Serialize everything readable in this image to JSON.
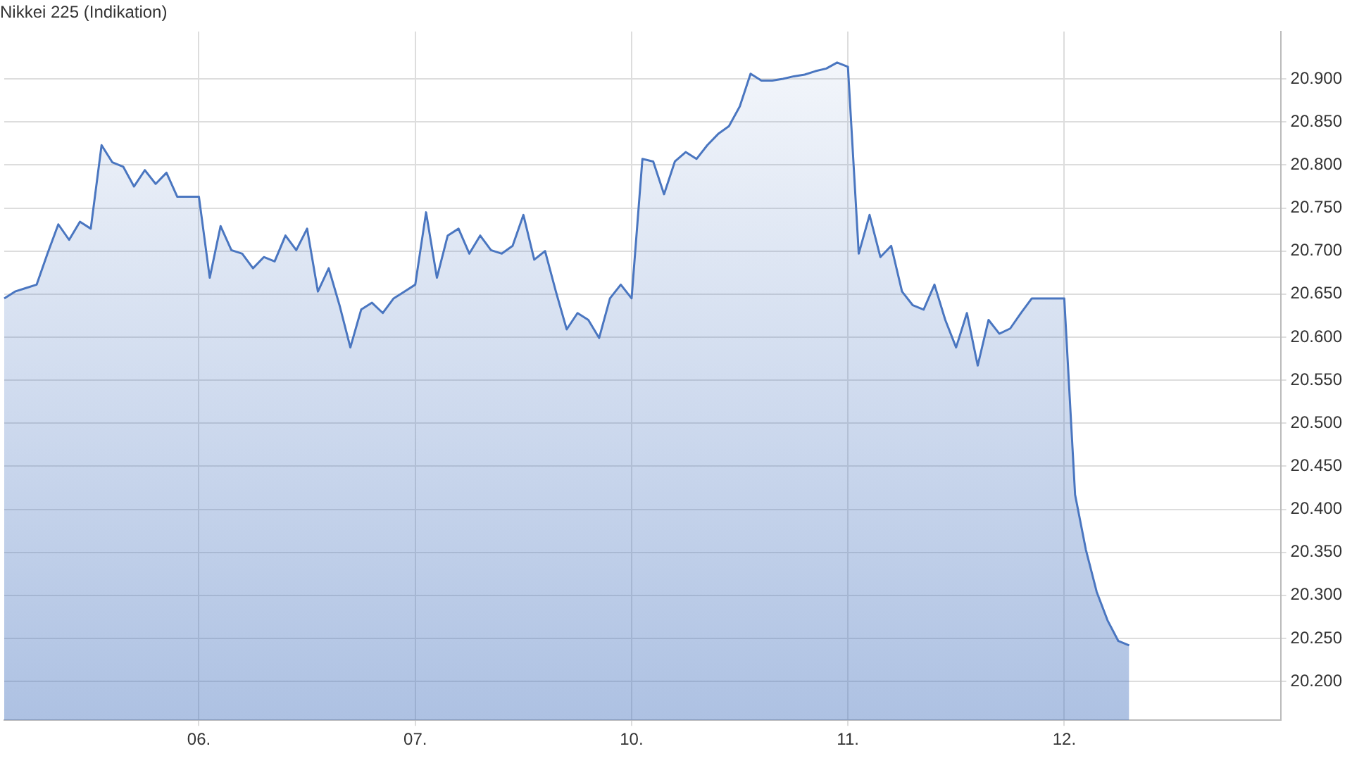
{
  "chart_data": {
    "type": "area",
    "title": "Nikkei 225 (Indikation)",
    "categories": [
      null,
      null,
      null,
      null,
      null,
      null,
      null,
      null,
      null,
      null,
      null,
      null,
      null,
      null,
      null,
      null,
      null,
      null,
      "06.",
      null,
      null,
      null,
      null,
      null,
      null,
      null,
      null,
      null,
      null,
      null,
      null,
      null,
      null,
      null,
      null,
      null,
      null,
      null,
      "07.",
      null,
      null,
      null,
      null,
      null,
      null,
      null,
      null,
      null,
      null,
      null,
      null,
      null,
      null,
      null,
      null,
      null,
      null,
      null,
      "10.",
      null,
      null,
      null,
      null,
      null,
      null,
      null,
      null,
      null,
      null,
      null,
      null,
      null,
      null,
      null,
      null,
      null,
      null,
      null,
      "11.",
      null,
      null,
      null,
      null,
      null,
      null,
      null,
      null,
      null,
      null,
      null,
      null,
      null,
      null,
      null,
      null,
      null,
      null,
      null,
      "12.",
      null,
      null,
      null,
      null,
      null,
      null,
      null,
      null,
      null,
      null,
      null,
      null,
      null,
      null,
      null,
      null,
      null,
      null,
      null,
      null
    ],
    "series": [
      {
        "color": "#4a76c0",
        "values": [
          20645,
          20653,
          20657,
          20661,
          20697,
          20731,
          20713,
          20734,
          20726,
          20823,
          20803,
          20798,
          20775,
          20794,
          20778,
          20791,
          20763,
          20763,
          20763,
          20669,
          20729,
          20701,
          20697,
          20680,
          20693,
          20688,
          20718,
          20701,
          20726,
          20653,
          20680,
          20637,
          20588,
          20632,
          20640,
          20628,
          20645,
          20653,
          20661,
          20745,
          20669,
          20718,
          20726,
          20697,
          20718,
          20701,
          20697,
          20706,
          20742,
          20690,
          20700,
          20653,
          20609,
          20628,
          20620,
          20599,
          20645,
          20661,
          20645,
          20807,
          20804,
          20766,
          20804,
          20815,
          20807,
          20823,
          20836,
          20845,
          20868,
          20906,
          20898,
          20898,
          20900,
          20903,
          20905,
          20909,
          20912,
          20919,
          20914,
          20697,
          20742,
          20693,
          20706,
          20653,
          20637,
          20632,
          20661,
          20620,
          20588,
          20628,
          20567,
          20620,
          20604,
          20610,
          20628,
          20645,
          20645,
          20645,
          20645,
          20417,
          20353,
          20304,
          20271,
          20247,
          20242,
          null,
          null,
          null,
          null,
          null,
          null,
          null,
          null,
          null,
          null,
          null,
          null,
          null,
          null
        ]
      }
    ],
    "ylim": [
      20155,
      20955
    ],
    "yticks": [
      {
        "value": 20200,
        "label": "20.200"
      },
      {
        "value": 20250,
        "label": "20.250"
      },
      {
        "value": 20300,
        "label": "20.300"
      },
      {
        "value": 20350,
        "label": "20.350"
      },
      {
        "value": 20400,
        "label": "20.400"
      },
      {
        "value": 20450,
        "label": "20.450"
      },
      {
        "value": 20500,
        "label": "20.500"
      },
      {
        "value": 20550,
        "label": "20.550"
      },
      {
        "value": 20600,
        "label": "20.600"
      },
      {
        "value": 20650,
        "label": "20.650"
      },
      {
        "value": 20700,
        "label": "20.700"
      },
      {
        "value": 20750,
        "label": "20.750"
      },
      {
        "value": 20800,
        "label": "20.800"
      },
      {
        "value": 20850,
        "label": "20.850"
      },
      {
        "value": 20900,
        "label": "20.900"
      }
    ],
    "grid": true,
    "legend": false,
    "marker": "none",
    "line_style": "solid"
  }
}
